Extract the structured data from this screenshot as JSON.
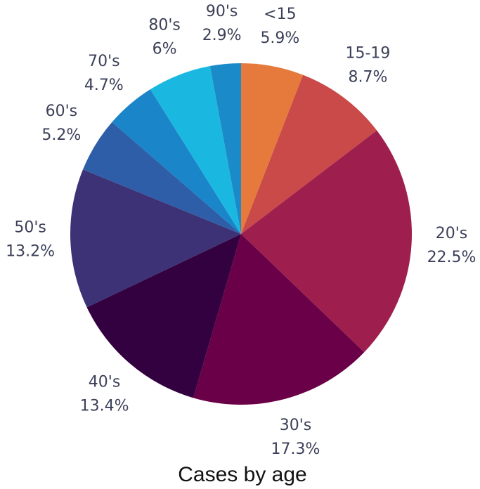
{
  "chart_data": {
    "type": "pie",
    "title": "Cases by age",
    "categories": [
      "<15",
      "15-19",
      "20's",
      "30's",
      "40's",
      "50's",
      "60's",
      "70's",
      "80's",
      "90's"
    ],
    "values": [
      5.9,
      8.7,
      22.5,
      17.3,
      13.4,
      13.2,
      5.2,
      4.7,
      6,
      2.9
    ],
    "value_labels": [
      "5.9%",
      "8.7%",
      "22.5%",
      "17.3%",
      "13.4%",
      "13.2%",
      "5.2%",
      "4.7%",
      "6%",
      "2.9%"
    ],
    "colors": [
      "#e57a3c",
      "#c94a48",
      "#9e1f4e",
      "#6a0047",
      "#330040",
      "#3d3276",
      "#2e5ea8",
      "#1a85c8",
      "#1ab8e0",
      "#1b8ac8"
    ]
  }
}
